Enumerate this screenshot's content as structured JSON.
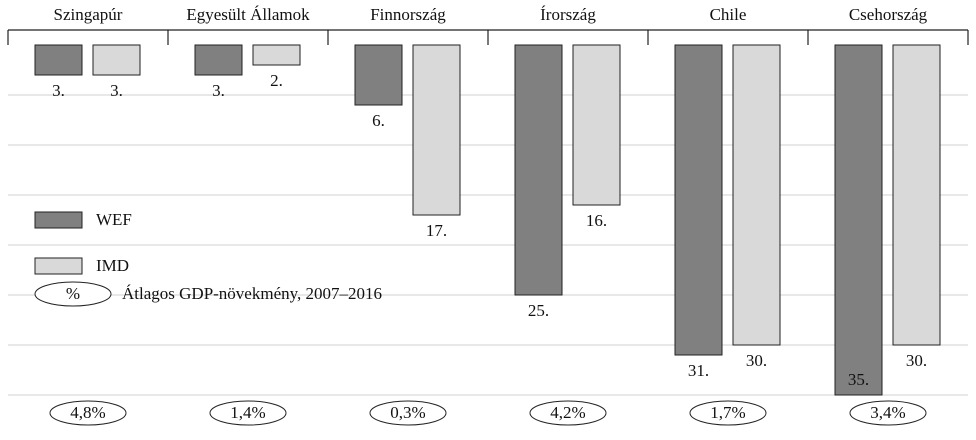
{
  "chart_data": {
    "type": "bar",
    "inverted": true,
    "categories": [
      "Szingapúr",
      "Egyesült Államok",
      "Finnország",
      "Írország",
      "Chile",
      "Csehország"
    ],
    "series": [
      {
        "name": "WEF",
        "color": "#808080",
        "values": [
          3,
          3,
          6,
          25,
          31,
          35
        ],
        "value_labels": [
          "3.",
          "3.",
          "6.",
          "25.",
          "31.",
          "35."
        ]
      },
      {
        "name": "IMD",
        "color": "#d9d9d9",
        "values": [
          3,
          2,
          17,
          16,
          30,
          30
        ],
        "value_labels": [
          "3.",
          "2.",
          "17.",
          "16.",
          "30.",
          "30."
        ]
      }
    ],
    "ylim": [
      0,
      35.5
    ],
    "yticks": [
      5,
      10,
      15,
      20,
      25,
      30,
      35
    ],
    "grid": true,
    "gdp_growth": {
      "legend_symbol": "%",
      "legend_label": "Átlagos GDP-növekmény, 2007–2016",
      "values": [
        4.8,
        1.4,
        0.3,
        4.2,
        1.7,
        3.4
      ],
      "value_labels": [
        "4,8%",
        "1,4%",
        "0,3%",
        "4,2%",
        "1,7%",
        "3,4%"
      ]
    }
  }
}
